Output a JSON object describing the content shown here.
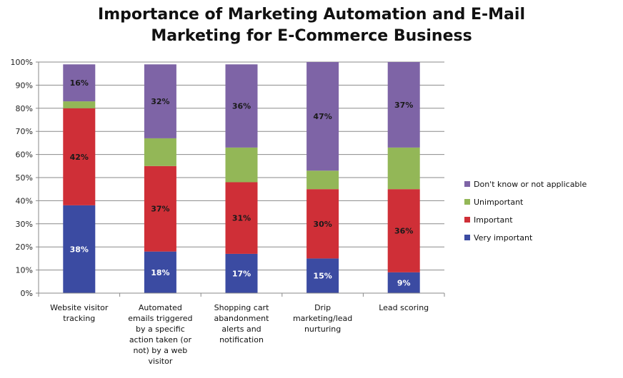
{
  "chart_data": {
    "type": "bar",
    "stacked": true,
    "title_lines": [
      "Importance of Marketing Automation and E-Mail",
      "Marketing for E-Commerce Business"
    ],
    "categories": [
      [
        "Website visitor",
        "tracking"
      ],
      [
        "Automated",
        "emails triggered",
        "by a specific",
        "action taken (or",
        "not) by a web",
        "visitor"
      ],
      [
        "Shopping cart",
        "abandonment",
        "alerts and",
        "notification"
      ],
      [
        "Drip",
        "marketing/lead",
        "nurturing"
      ],
      [
        "Lead scoring"
      ]
    ],
    "series": [
      {
        "name": "Very important",
        "color": "#3b4ba2",
        "values": [
          38,
          18,
          17,
          15,
          9
        ],
        "labels": [
          "38%",
          "18%",
          "17%",
          "15%",
          "9%"
        ],
        "label_color": "#ffffff"
      },
      {
        "name": "Important",
        "color": "#cf2f37",
        "values": [
          42,
          37,
          31,
          30,
          36
        ],
        "labels": [
          "42%",
          "37%",
          "31%",
          "30%",
          "36%"
        ],
        "label_color": "#1a1a1a"
      },
      {
        "name": "Unimportant",
        "color": "#93b757",
        "values": [
          3,
          12,
          15,
          8,
          18
        ],
        "labels": [
          "",
          "",
          "",
          "",
          ""
        ],
        "label_color": "#1a1a1a"
      },
      {
        "name": "Don't know or not applicable",
        "color": "#7e64a6",
        "values": [
          16,
          32,
          36,
          47,
          37
        ],
        "labels": [
          "16%",
          "32%",
          "36%",
          "47%",
          "37%"
        ],
        "label_color": "#1a1a1a"
      }
    ],
    "ylim": [
      0,
      100
    ],
    "yticks": [
      "0%",
      "10%",
      "20%",
      "30%",
      "40%",
      "50%",
      "60%",
      "70%",
      "80%",
      "90%",
      "100%"
    ],
    "grid": true,
    "legend_position": "right",
    "legend_order": [
      "Don't know or not applicable",
      "Unimportant",
      "Important",
      "Very important"
    ]
  }
}
